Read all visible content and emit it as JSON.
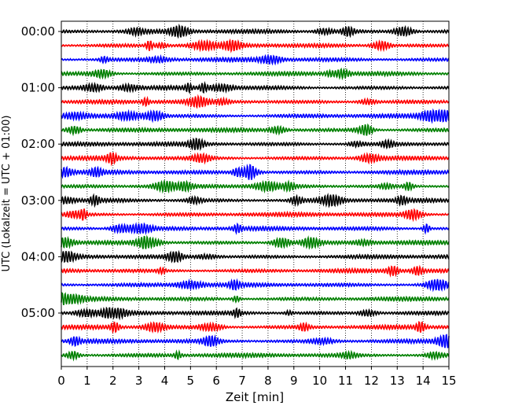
{
  "chart_data": {
    "type": "line",
    "title": "",
    "xlabel": "Zeit  [min]",
    "ylabel": "UTC (Lokalzeit = UTC + 01:00)",
    "xlim": [
      0,
      15
    ],
    "x_ticks": [
      "0",
      "1",
      "2",
      "3",
      "4",
      "5",
      "6",
      "7",
      "8",
      "9",
      "10",
      "11",
      "12",
      "13",
      "14",
      "15"
    ],
    "y_tick_labels": [
      "00:00",
      "01:00",
      "02:00",
      "03:00",
      "04:00",
      "05:00"
    ],
    "trace_interval_min": 15,
    "trace_count": 24,
    "grid": "vertical dotted lines at each minute",
    "colors": [
      "#000000",
      "#ff0000",
      "#0000ff",
      "#008000"
    ],
    "series": [
      {
        "start": "00:00",
        "color": "#000000"
      },
      {
        "start": "00:15",
        "color": "#ff0000"
      },
      {
        "start": "00:30",
        "color": "#0000ff"
      },
      {
        "start": "00:45",
        "color": "#008000"
      },
      {
        "start": "01:00",
        "color": "#000000"
      },
      {
        "start": "01:15",
        "color": "#ff0000"
      },
      {
        "start": "01:30",
        "color": "#0000ff"
      },
      {
        "start": "01:45",
        "color": "#008000"
      },
      {
        "start": "02:00",
        "color": "#000000"
      },
      {
        "start": "02:15",
        "color": "#ff0000"
      },
      {
        "start": "02:30",
        "color": "#0000ff"
      },
      {
        "start": "02:45",
        "color": "#008000"
      },
      {
        "start": "03:00",
        "color": "#000000"
      },
      {
        "start": "03:15",
        "color": "#ff0000"
      },
      {
        "start": "03:30",
        "color": "#0000ff"
      },
      {
        "start": "03:45",
        "color": "#008000"
      },
      {
        "start": "04:00",
        "color": "#000000"
      },
      {
        "start": "04:15",
        "color": "#ff0000"
      },
      {
        "start": "04:30",
        "color": "#0000ff"
      },
      {
        "start": "04:45",
        "color": "#008000"
      },
      {
        "start": "05:00",
        "color": "#000000"
      },
      {
        "start": "05:15",
        "color": "#ff0000"
      },
      {
        "start": "05:30",
        "color": "#0000ff"
      },
      {
        "start": "05:45",
        "color": "#008000"
      }
    ]
  }
}
